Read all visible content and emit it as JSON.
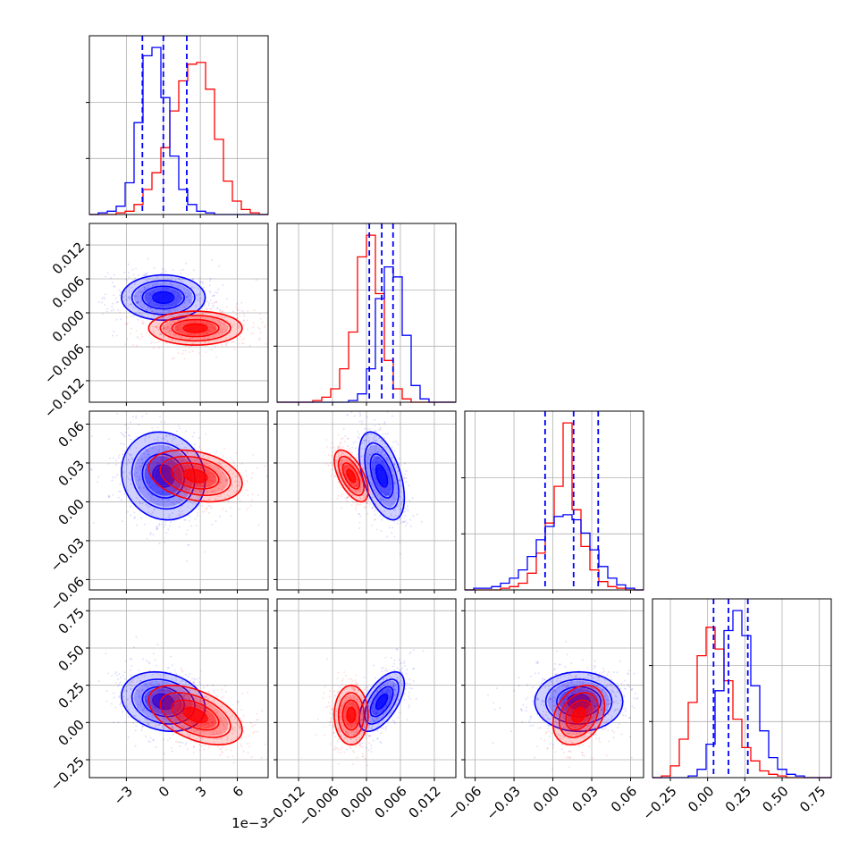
{
  "chart_data": {
    "type": "corner",
    "grid": true,
    "parameters": [
      {
        "ticks": [
          -3,
          0,
          3,
          6
        ],
        "tick_labels": [
          "−3",
          "0",
          "3",
          "6"
        ],
        "range": [
          -6.0,
          8.5
        ],
        "offset_label": "1e−3"
      },
      {
        "ticks": [
          -0.012,
          -0.006,
          0.0,
          0.006,
          0.012
        ],
        "tick_labels": [
          "−0.012",
          "−0.006",
          "0.000",
          "0.006",
          "0.012"
        ],
        "range": [
          -0.0158,
          0.0158
        ]
      },
      {
        "ticks": [
          -0.06,
          -0.03,
          0.0,
          0.03,
          0.06
        ],
        "tick_labels": [
          "−0.06",
          "−0.03",
          "0.00",
          "0.03",
          "0.06"
        ],
        "range": [
          -0.068,
          0.07
        ]
      },
      {
        "ticks": [
          -0.25,
          0.0,
          0.25,
          0.5,
          0.75
        ],
        "tick_labels": [
          "−0.25",
          "0.00",
          "0.25",
          "0.50",
          "0.75"
        ],
        "range": [
          -0.37,
          0.83
        ]
      }
    ],
    "series": [
      {
        "color": "#0000ff",
        "mean": [
          0.0,
          0.0027,
          0.02,
          0.14
        ],
        "std": [
          1.7,
          0.002,
          0.017,
          0.1
        ],
        "corr": [
          [
            1,
            0,
            -0.1,
            -0.2
          ],
          [
            0,
            1,
            -0.5,
            0.6
          ],
          [
            -0.1,
            -0.5,
            1,
            0.0
          ],
          [
            -0.2,
            0.6,
            0.0,
            1
          ]
        ],
        "quantiles": [
          [
            -1.7,
            0.0,
            1.9
          ],
          [
            0.0005,
            0.0027,
            0.0047
          ],
          [
            -0.006,
            0.016,
            0.035
          ],
          [
            0.04,
            0.14,
            0.27
          ]
        ]
      },
      {
        "color": "#ff0000",
        "mean": [
          2.6,
          -0.0027,
          0.02,
          0.05
        ],
        "std": [
          1.9,
          0.0015,
          0.01,
          0.1
        ],
        "corr": [
          [
            1,
            0,
            -0.3,
            -0.5
          ],
          [
            0,
            1,
            -0.6,
            0.0
          ],
          [
            -0.3,
            -0.6,
            1,
            0.3
          ],
          [
            -0.5,
            0.0,
            0.3,
            1
          ]
        ]
      }
    ],
    "histograms": [
      {
        "bins": [
          -6.0,
          8.5
        ],
        "blue": [
          0,
          1,
          2,
          5,
          19,
          55,
          95,
          100,
          70,
          35,
          15,
          6,
          2,
          1,
          0,
          0,
          0,
          0,
          0,
          0
        ],
        "red": [
          0,
          0,
          0,
          1,
          2,
          6,
          15,
          25,
          40,
          62,
          80,
          90,
          91,
          75,
          45,
          20,
          8,
          3,
          1,
          0
        ]
      },
      {
        "bins": [
          -0.0158,
          0.0158
        ],
        "blue": [
          0,
          0,
          0,
          0,
          0,
          0,
          0,
          0,
          1,
          5,
          20,
          62,
          81,
          75,
          40,
          10,
          2,
          0,
          0,
          0
        ],
        "red": [
          0,
          0,
          0,
          0,
          1,
          3,
          8,
          20,
          42,
          87,
          100,
          65,
          25,
          8,
          2,
          0,
          0,
          0,
          0,
          0
        ]
      },
      {
        "bins": [
          -0.068,
          0.07
        ],
        "blue": [
          0,
          1,
          1,
          2,
          4,
          7,
          12,
          20,
          30,
          38,
          44,
          45,
          42,
          34,
          24,
          14,
          7,
          3,
          1,
          0
        ],
        "red": [
          0,
          0,
          0,
          0,
          1,
          2,
          4,
          10,
          22,
          40,
          62,
          100,
          48,
          26,
          12,
          5,
          2,
          1,
          0,
          0
        ]
      },
      {
        "bins": [
          -0.37,
          0.83
        ],
        "blue": [
          0,
          0,
          0,
          0,
          1,
          5,
          20,
          52,
          88,
          100,
          85,
          55,
          28,
          12,
          5,
          2,
          1,
          0,
          0,
          0
        ],
        "red": [
          0,
          1,
          7,
          23,
          45,
          73,
          90,
          77,
          58,
          35,
          18,
          10,
          4,
          2,
          1,
          0,
          0,
          0,
          0,
          0
        ]
      }
    ]
  }
}
